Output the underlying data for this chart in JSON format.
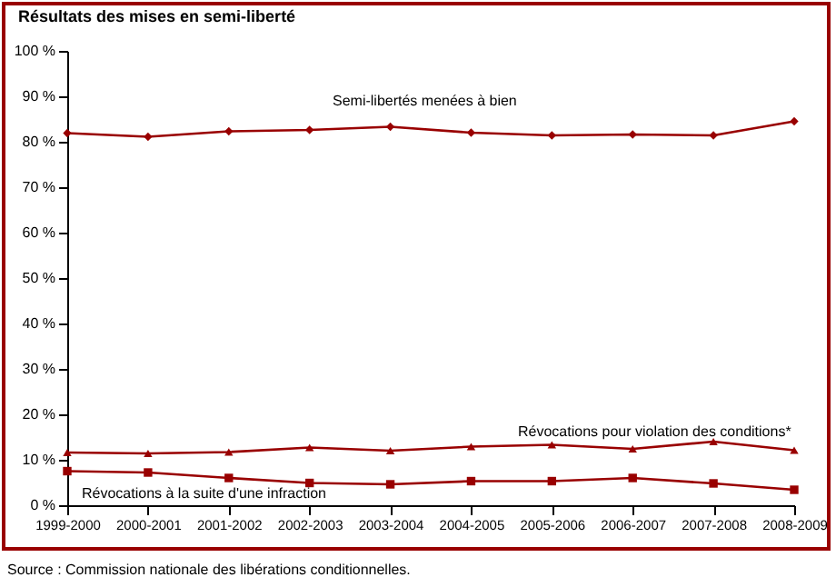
{
  "chart_data": {
    "type": "line",
    "title": "Résultats des mises en semi-liberté",
    "categories": [
      "1999-2000",
      "2000-2001",
      "2001-2002",
      "2002-2003",
      "2003-2004",
      "2004-2005",
      "2005-2006",
      "2006-2007",
      "2007-2008",
      "2008-2009"
    ],
    "series": [
      {
        "color": "#990000",
        "marker": "diamond",
        "values": [
          81.9,
          81.1,
          82.3,
          82.6,
          83.3,
          82.0,
          81.4,
          81.6,
          81.4,
          84.5
        ]
      },
      {
        "color": "#990000",
        "marker": "triangle",
        "values": [
          11.6,
          11.4,
          11.7,
          12.7,
          12.0,
          12.9,
          13.3,
          12.4,
          14.0,
          12.1
        ]
      },
      {
        "color": "#990000",
        "marker": "square",
        "values": [
          7.5,
          7.2,
          6.0,
          4.9,
          4.6,
          5.3,
          5.3,
          6.0,
          4.8,
          3.4
        ]
      }
    ],
    "ylim": [
      0,
      100
    ],
    "yticks": [
      {
        "value": 0,
        "label": "0 %"
      },
      {
        "value": 10,
        "label": "10 %"
      },
      {
        "value": 20,
        "label": "20 %"
      },
      {
        "value": 30,
        "label": "30 %"
      },
      {
        "value": 40,
        "label": "40 %"
      },
      {
        "value": 50,
        "label": "50 %"
      },
      {
        "value": 60,
        "label": "60 %"
      },
      {
        "value": 70,
        "label": "70 %"
      },
      {
        "value": 80,
        "label": "80 %"
      },
      {
        "value": 90,
        "label": "90 %"
      },
      {
        "value": 100,
        "label": "100 %"
      }
    ],
    "grid": false,
    "line_style": "solid",
    "annotations": [
      "Semi-libertés menées à bien",
      "Révocations pour violation des conditions*",
      "Révocations à la suite d'une infraction",
      "Source : Commission nationale des libérations conditionnelles."
    ]
  }
}
